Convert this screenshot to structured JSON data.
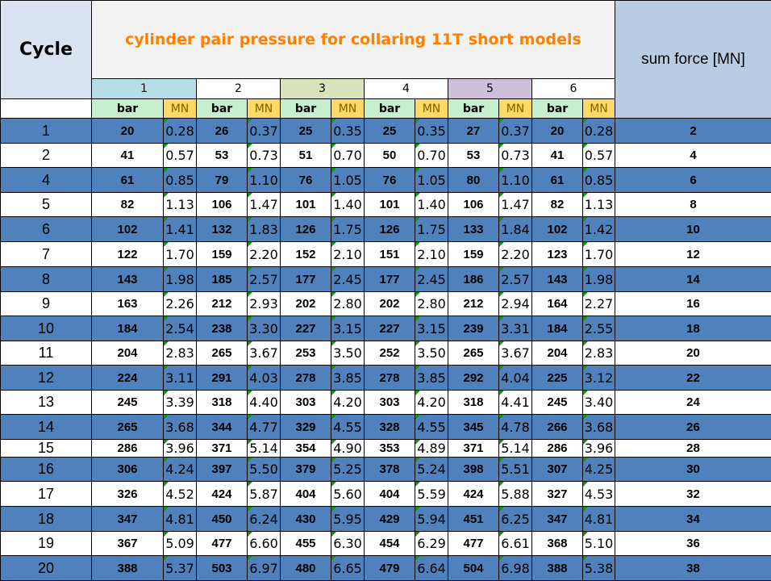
{
  "header": {
    "cycle": "Cycle",
    "title": "cylinder pair pressure for collaring 11T short models",
    "sum": "sum force [MN]"
  },
  "groups": [
    {
      "label": "1",
      "color": "#b7dde8"
    },
    {
      "label": "2",
      "color": "#ffffff"
    },
    {
      "label": "3",
      "color": "#d8e4bc"
    },
    {
      "label": "4",
      "color": "#ffffff"
    },
    {
      "label": "5",
      "color": "#ccc0da"
    },
    {
      "label": "6",
      "color": "#ffffff"
    }
  ],
  "units": {
    "bar": "bar",
    "mn": "MN"
  },
  "row_colors": {
    "odd": "#4f81bd",
    "even": "#ffffff"
  },
  "rows": [
    {
      "cycle": "1",
      "vals": [
        [
          "20",
          "0.28"
        ],
        [
          "26",
          "0.37"
        ],
        [
          "25",
          "0.35"
        ],
        [
          "25",
          "0.35"
        ],
        [
          "27",
          "0.37"
        ],
        [
          "20",
          "0.28"
        ]
      ],
      "sum": "2"
    },
    {
      "cycle": "2",
      "vals": [
        [
          "41",
          "0.57"
        ],
        [
          "53",
          "0.73"
        ],
        [
          "51",
          "0.70"
        ],
        [
          "50",
          "0.70"
        ],
        [
          "53",
          "0.73"
        ],
        [
          "41",
          "0.57"
        ]
      ],
      "sum": "4"
    },
    {
      "cycle": "4",
      "vals": [
        [
          "61",
          "0.85"
        ],
        [
          "79",
          "1.10"
        ],
        [
          "76",
          "1.05"
        ],
        [
          "76",
          "1.05"
        ],
        [
          "80",
          "1.10"
        ],
        [
          "61",
          "0.85"
        ]
      ],
      "sum": "6"
    },
    {
      "cycle": "5",
      "vals": [
        [
          "82",
          "1.13"
        ],
        [
          "106",
          "1.47"
        ],
        [
          "101",
          "1.40"
        ],
        [
          "101",
          "1.40"
        ],
        [
          "106",
          "1.47"
        ],
        [
          "82",
          "1.13"
        ]
      ],
      "sum": "8"
    },
    {
      "cycle": "6",
      "vals": [
        [
          "102",
          "1.41"
        ],
        [
          "132",
          "1.83"
        ],
        [
          "126",
          "1.75"
        ],
        [
          "126",
          "1.75"
        ],
        [
          "133",
          "1.84"
        ],
        [
          "102",
          "1.42"
        ]
      ],
      "sum": "10"
    },
    {
      "cycle": "7",
      "vals": [
        [
          "122",
          "1.70"
        ],
        [
          "159",
          "2.20"
        ],
        [
          "152",
          "2.10"
        ],
        [
          "151",
          "2.10"
        ],
        [
          "159",
          "2.20"
        ],
        [
          "123",
          "1.70"
        ]
      ],
      "sum": "12"
    },
    {
      "cycle": "8",
      "vals": [
        [
          "143",
          "1.98"
        ],
        [
          "185",
          "2.57"
        ],
        [
          "177",
          "2.45"
        ],
        [
          "177",
          "2.45"
        ],
        [
          "186",
          "2.57"
        ],
        [
          "143",
          "1.98"
        ]
      ],
      "sum": "14"
    },
    {
      "cycle": "9",
      "vals": [
        [
          "163",
          "2.26"
        ],
        [
          "212",
          "2.93"
        ],
        [
          "202",
          "2.80"
        ],
        [
          "202",
          "2.80"
        ],
        [
          "212",
          "2.94"
        ],
        [
          "164",
          "2.27"
        ]
      ],
      "sum": "16"
    },
    {
      "cycle": "10",
      "vals": [
        [
          "184",
          "2.54"
        ],
        [
          "238",
          "3.30"
        ],
        [
          "227",
          "3.15"
        ],
        [
          "227",
          "3.15"
        ],
        [
          "239",
          "3.31"
        ],
        [
          "184",
          "2.55"
        ]
      ],
      "sum": "18"
    },
    {
      "cycle": "11",
      "vals": [
        [
          "204",
          "2.83"
        ],
        [
          "265",
          "3.67"
        ],
        [
          "253",
          "3.50"
        ],
        [
          "252",
          "3.50"
        ],
        [
          "265",
          "3.67"
        ],
        [
          "204",
          "2.83"
        ]
      ],
      "sum": "20"
    },
    {
      "cycle": "12",
      "vals": [
        [
          "224",
          "3.11"
        ],
        [
          "291",
          "4.03"
        ],
        [
          "278",
          "3.85"
        ],
        [
          "278",
          "3.85"
        ],
        [
          "292",
          "4.04"
        ],
        [
          "225",
          "3.12"
        ]
      ],
      "sum": "22"
    },
    {
      "cycle": "13",
      "vals": [
        [
          "245",
          "3.39"
        ],
        [
          "318",
          "4.40"
        ],
        [
          "303",
          "4.20"
        ],
        [
          "303",
          "4.20"
        ],
        [
          "318",
          "4.41"
        ],
        [
          "245",
          "3.40"
        ]
      ],
      "sum": "24"
    },
    {
      "cycle": "14",
      "vals": [
        [
          "265",
          "3.68"
        ],
        [
          "344",
          "4.77"
        ],
        [
          "329",
          "4.55"
        ],
        [
          "328",
          "4.55"
        ],
        [
          "345",
          "4.78"
        ],
        [
          "266",
          "3.68"
        ]
      ],
      "sum": "26"
    },
    {
      "cycle": "15",
      "vals": [
        [
          "286",
          "3.96"
        ],
        [
          "371",
          "5.14"
        ],
        [
          "354",
          "4.90"
        ],
        [
          "353",
          "4.89"
        ],
        [
          "371",
          "5.14"
        ],
        [
          "286",
          "3.96"
        ]
      ],
      "sum": "28"
    },
    {
      "cycle": "16",
      "vals": [
        [
          "306",
          "4.24"
        ],
        [
          "397",
          "5.50"
        ],
        [
          "379",
          "5.25"
        ],
        [
          "378",
          "5.24"
        ],
        [
          "398",
          "5.51"
        ],
        [
          "307",
          "4.25"
        ]
      ],
      "sum": "30"
    },
    {
      "cycle": "17",
      "vals": [
        [
          "326",
          "4.52"
        ],
        [
          "424",
          "5.87"
        ],
        [
          "404",
          "5.60"
        ],
        [
          "404",
          "5.59"
        ],
        [
          "424",
          "5.88"
        ],
        [
          "327",
          "4.53"
        ]
      ],
      "sum": "32"
    },
    {
      "cycle": "18",
      "vals": [
        [
          "347",
          "4.81"
        ],
        [
          "450",
          "6.24"
        ],
        [
          "430",
          "5.95"
        ],
        [
          "429",
          "5.94"
        ],
        [
          "451",
          "6.25"
        ],
        [
          "347",
          "4.81"
        ]
      ],
      "sum": "34"
    },
    {
      "cycle": "19",
      "vals": [
        [
          "367",
          "5.09"
        ],
        [
          "477",
          "6.60"
        ],
        [
          "455",
          "6.30"
        ],
        [
          "454",
          "6.29"
        ],
        [
          "477",
          "6.61"
        ],
        [
          "368",
          "5.10"
        ]
      ],
      "sum": "36"
    },
    {
      "cycle": "20",
      "vals": [
        [
          "388",
          "5.37"
        ],
        [
          "503",
          "6.97"
        ],
        [
          "480",
          "6.65"
        ],
        [
          "479",
          "6.64"
        ],
        [
          "504",
          "6.98"
        ],
        [
          "388",
          "5.38"
        ]
      ],
      "sum": "38"
    }
  ]
}
